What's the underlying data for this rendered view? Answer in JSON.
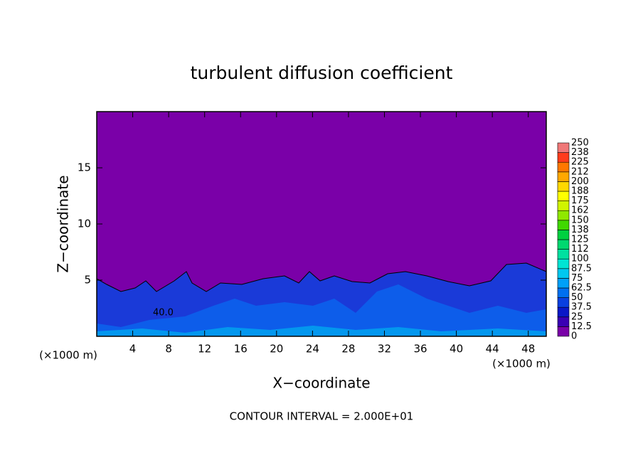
{
  "chart_data": {
    "type": "contour",
    "title": "turbulent diffusion coefficient",
    "x_label": "X−coordinate",
    "y_label": "Z−coordinate",
    "x_unit_left": "(×1000 m)",
    "x_unit_right": "(×1000 m)",
    "footer": "CONTOUR INTERVAL = 2.000E+01",
    "xlim": [
      0,
      50
    ],
    "ylim": [
      0,
      20
    ],
    "xticks": [
      4,
      8,
      12,
      16,
      20,
      24,
      28,
      32,
      36,
      40,
      44,
      48
    ],
    "yticks": [
      5,
      10,
      15
    ],
    "contour_label": "40.0",
    "colorbar": {
      "levels": [
        0,
        12.5,
        25,
        37.5,
        50,
        62.5,
        75,
        87.5,
        100,
        {
          "value": 112.5,
          "label": "112"
        },
        125,
        {
          "value": 137.5,
          "label": "138"
        },
        150,
        {
          "value": 162.5,
          "label": "162"
        },
        175,
        {
          "value": 187.5,
          "label": "188"
        },
        200,
        {
          "value": 212.5,
          "label": "212"
        },
        225,
        {
          "value": 237.5,
          "label": "238"
        },
        250
      ],
      "colors": [
        "#7a00a8",
        "#3a00b4",
        "#0a18c8",
        "#0a40e0",
        "#0070f0",
        "#00a0f8",
        "#00c8f0",
        "#00e4d4",
        "#00e0a0",
        "#00d870",
        "#00d040",
        "#40d800",
        "#90e800",
        "#d0f400",
        "#ffff00",
        "#ffd800",
        "#ffa800",
        "#ff7800",
        "#ff3c1c",
        "#f07878"
      ]
    }
  }
}
